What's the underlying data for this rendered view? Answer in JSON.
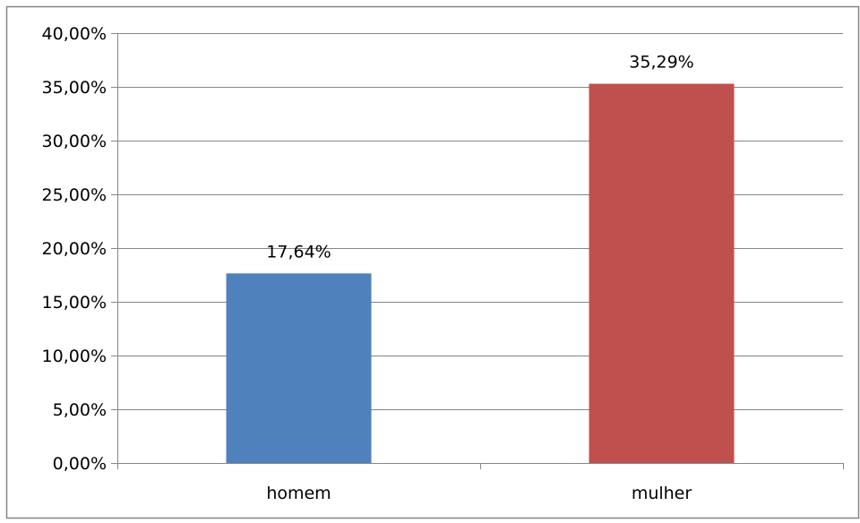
{
  "chart_data": {
    "type": "bar",
    "categories": [
      "homem",
      "mulher"
    ],
    "values": [
      17.64,
      35.29
    ],
    "data_labels": [
      "17,64%",
      "35,29%"
    ],
    "ylim": [
      0,
      40
    ],
    "y_ticks": [
      0,
      5,
      10,
      15,
      20,
      25,
      30,
      35,
      40
    ],
    "y_tick_labels": [
      "0,00%",
      "5,00%",
      "10,00%",
      "15,00%",
      "20,00%",
      "25,00%",
      "30,00%",
      "35,00%",
      "40,00%"
    ],
    "bar_colors": [
      "#4F81BD",
      "#C0504D"
    ],
    "grid": true,
    "legend": "none",
    "title": "",
    "xlabel": "",
    "ylabel": ""
  }
}
